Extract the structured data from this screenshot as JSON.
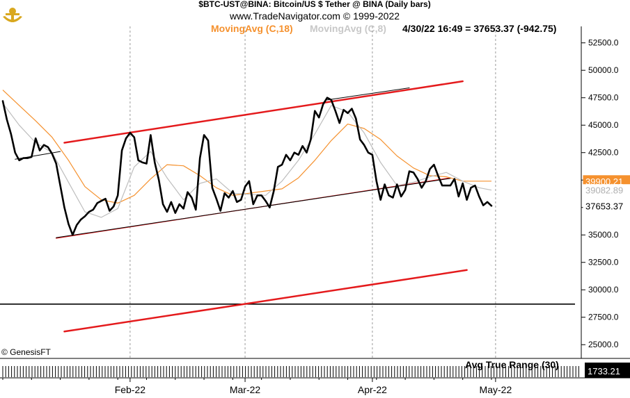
{
  "chart_data": {
    "type": "line",
    "title": "$BTC-UST@BINA:  Bitcoin/US $ Tether @ BINA  (Daily bars)",
    "subtitle": "www.TradeNavigator.com © 1999-2022",
    "legend": [
      {
        "name": "MovingAvg (C,18)",
        "color": "#f5912e"
      },
      {
        "name": "MovingAvg (C,8)",
        "color": "#c8c8c8"
      }
    ],
    "readout": "4/30/22 16:49 = 37653.37 (-942.75)",
    "copyright": "© GenesisFT",
    "x_labels": [
      "Feb-22",
      "Mar-22",
      "Apr-22",
      "May-22"
    ],
    "x_label_days": [
      32,
      60,
      91,
      121
    ],
    "y_ticks": [
      25000,
      27500,
      30000,
      32500,
      35000,
      37500,
      40000,
      42500,
      45000,
      47500,
      50000,
      52500
    ],
    "y_tick_labels": [
      "25000.0",
      "27500.0",
      "30000.0",
      "32500.0",
      "35000.0",
      "37500.0",
      "40000.0",
      "42500.0",
      "45000.0",
      "47500.0",
      "50000.0",
      "52500.0"
    ],
    "ylim": [
      23750,
      54000
    ],
    "xlim": [
      1,
      124
    ],
    "value_tags": [
      {
        "label": "39900.21",
        "value": 39900.21,
        "bg": "#f5912e",
        "fg": "#ffffff"
      },
      {
        "label": "39082.89",
        "value": 39082.89,
        "bg": "#ffffff",
        "fg": "#b0b0b0"
      },
      {
        "label": "37653.37",
        "value": 37653.37,
        "bg": "#ffffff",
        "fg": "#000000"
      }
    ],
    "price_series": {
      "name": "",
      "days": [
        1,
        2,
        3,
        4,
        5,
        6,
        7,
        8,
        9,
        10,
        11,
        12,
        13,
        14,
        15,
        16,
        17,
        18,
        19,
        20,
        21,
        22,
        23,
        24,
        25,
        26,
        27,
        28,
        29,
        30,
        31,
        32,
        33,
        34,
        35,
        36,
        37,
        38,
        39,
        40,
        41,
        42,
        43,
        44,
        45,
        46,
        47,
        48,
        49,
        50,
        51,
        52,
        53,
        54,
        55,
        56,
        57,
        58,
        59,
        60,
        61,
        62,
        63,
        64,
        65,
        66,
        67,
        68,
        69,
        70,
        71,
        72,
        73,
        74,
        75,
        76,
        77,
        78,
        79,
        80,
        81,
        82,
        83,
        84,
        85,
        86,
        87,
        88,
        89,
        90,
        91,
        92,
        93,
        94,
        95,
        96,
        97,
        98,
        99,
        100,
        101,
        102,
        103,
        104,
        105,
        106,
        107,
        108,
        109,
        110,
        111,
        112,
        113,
        114,
        115,
        116,
        117,
        118,
        119,
        120
      ],
      "values": [
        47200,
        45500,
        44200,
        42500,
        41800,
        42000,
        42000,
        42100,
        43800,
        42700,
        43200,
        43000,
        42400,
        41500,
        39500,
        37500,
        36000,
        35000,
        35900,
        36400,
        36700,
        37100,
        37300,
        37900,
        38100,
        38300,
        37200,
        37600,
        38600,
        42700,
        43800,
        44300,
        43900,
        41800,
        41600,
        41500,
        44100,
        41600,
        40000,
        37800,
        37100,
        38000,
        37000,
        37800,
        37400,
        38900,
        38400,
        37300,
        42000,
        44100,
        43600,
        39300,
        38300,
        37200,
        38800,
        38400,
        39000,
        38000,
        38200,
        39400,
        39900,
        37800,
        38600,
        38600,
        38100,
        37500,
        39000,
        41200,
        41400,
        42300,
        41800,
        42500,
        42300,
        43100,
        42500,
        43700,
        46300,
        45700,
        46900,
        47500,
        47300,
        46300,
        45200,
        46400,
        46100,
        46500,
        45600,
        43700,
        43200,
        42500,
        42300,
        39900,
        38200,
        39600,
        38600,
        38400,
        39600,
        38500,
        39100,
        40800,
        40700,
        40100,
        39300,
        39900,
        41000,
        41400,
        40400,
        39500,
        39500,
        39500,
        40100,
        38500,
        39700,
        38200,
        39300,
        39500,
        38500,
        37700,
        38000,
        37653.37
      ]
    },
    "ma18_series": {
      "name": "MovingAvg (C,18)",
      "days": [
        1,
        5,
        9,
        13,
        17,
        21,
        25,
        29,
        33,
        37,
        41,
        45,
        49,
        53,
        57,
        61,
        65,
        69,
        73,
        77,
        81,
        85,
        89,
        93,
        97,
        101,
        105,
        109,
        113,
        117,
        120
      ],
      "values": [
        48200,
        46800,
        45400,
        43900,
        41800,
        39400,
        38200,
        37900,
        38600,
        40100,
        41400,
        41300,
        40400,
        39300,
        38600,
        38800,
        39000,
        39200,
        40200,
        41800,
        43600,
        45100,
        44700,
        43700,
        42200,
        41100,
        40400,
        40300,
        39900,
        39900,
        39900.21
      ]
    },
    "ma8_series": {
      "name": "MovingAvg (C,8)",
      "days": [
        1,
        5,
        9,
        13,
        17,
        21,
        25,
        29,
        33,
        37,
        41,
        45,
        49,
        53,
        57,
        61,
        65,
        69,
        73,
        77,
        81,
        85,
        89,
        93,
        97,
        101,
        105,
        109,
        113,
        117,
        120
      ],
      "values": [
        47000,
        45000,
        43400,
        42500,
        39800,
        37100,
        36600,
        37400,
        41200,
        42600,
        40200,
        38200,
        39700,
        40100,
        38800,
        38700,
        38600,
        39900,
        41800,
        44200,
        46800,
        46200,
        44300,
        41600,
        39500,
        39800,
        40300,
        40700,
        39900,
        39300,
        39082.89
      ]
    },
    "channel_lines": [
      {
        "color": "#e41a1c",
        "width": 2.5,
        "from": [
          16,
          43400
        ],
        "to": [
          113,
          49000
        ]
      },
      {
        "color": "#e41a1c",
        "width": 1.3,
        "from": [
          14,
          34700
        ],
        "to": [
          110,
          40200
        ]
      },
      {
        "color": "#e41a1c",
        "width": 2.5,
        "from": [
          16,
          26200
        ],
        "to": [
          114,
          31800
        ]
      },
      {
        "color": "#000000",
        "width": 1.0,
        "from": [
          14,
          34750
        ],
        "to": [
          110,
          40150
        ]
      },
      {
        "color": "#000000",
        "width": 1.0,
        "from": [
          4,
          41900
        ],
        "to": [
          15,
          42600
        ]
      },
      {
        "color": "#000000",
        "width": 1.0,
        "from": [
          80,
          47300
        ],
        "to": [
          100,
          48400
        ]
      }
    ],
    "horizontal_line": {
      "value": 28700,
      "color": "#000000"
    },
    "grid": true,
    "indicator": {
      "label": "Avg True Range (30)",
      "value_label": "1733.21"
    }
  }
}
